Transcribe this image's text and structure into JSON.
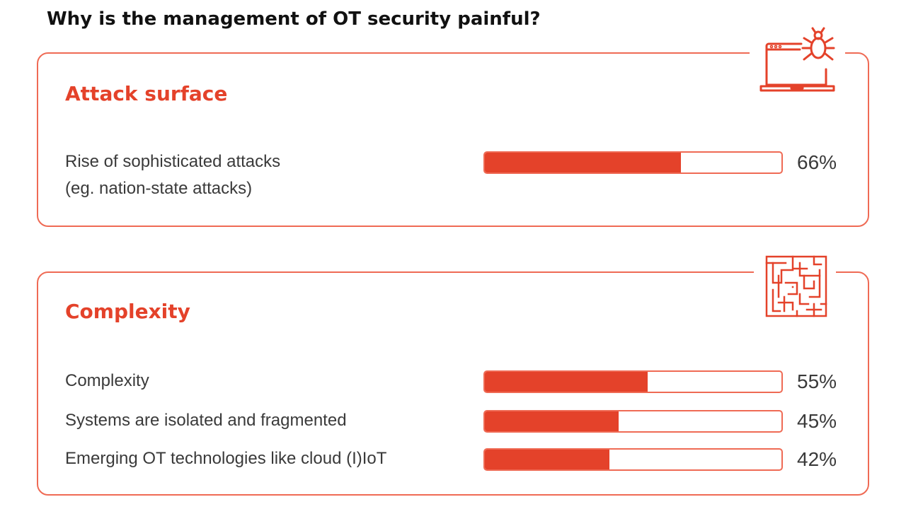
{
  "title": "Why is the management of OT security painful?",
  "colors": {
    "accent": "#e4422a",
    "border": "#ef6a54"
  },
  "sections": [
    {
      "heading": "Attack surface",
      "icon": "laptop-bug-icon",
      "items": [
        {
          "label_line1": "Rise of sophisticated attacks",
          "label_line2": "(eg. nation-state attacks)",
          "percent": 66,
          "value_text": "66%"
        }
      ]
    },
    {
      "heading": "Complexity",
      "icon": "maze-icon",
      "items": [
        {
          "label": "Complexity",
          "percent": 55,
          "value_text": "55%"
        },
        {
          "label": "Systems are isolated and fragmented",
          "percent": 45,
          "value_text": "45%"
        },
        {
          "label": "Emerging OT technologies like cloud (I)IoT",
          "percent": 42,
          "value_text": "42%"
        }
      ]
    }
  ],
  "chart_data": {
    "type": "bar",
    "title": "Why is the management of OT security painful?",
    "categories": [
      "Rise of sophisticated attacks (eg. nation-state attacks)",
      "Complexity",
      "Systems are isolated and fragmented",
      "Emerging OT technologies like cloud (I)IoT"
    ],
    "values": [
      66,
      55,
      45,
      42
    ],
    "groups": [
      "Attack surface",
      "Complexity",
      "Complexity",
      "Complexity"
    ],
    "ylim": [
      0,
      100
    ],
    "orientation": "horizontal",
    "grid": false
  }
}
